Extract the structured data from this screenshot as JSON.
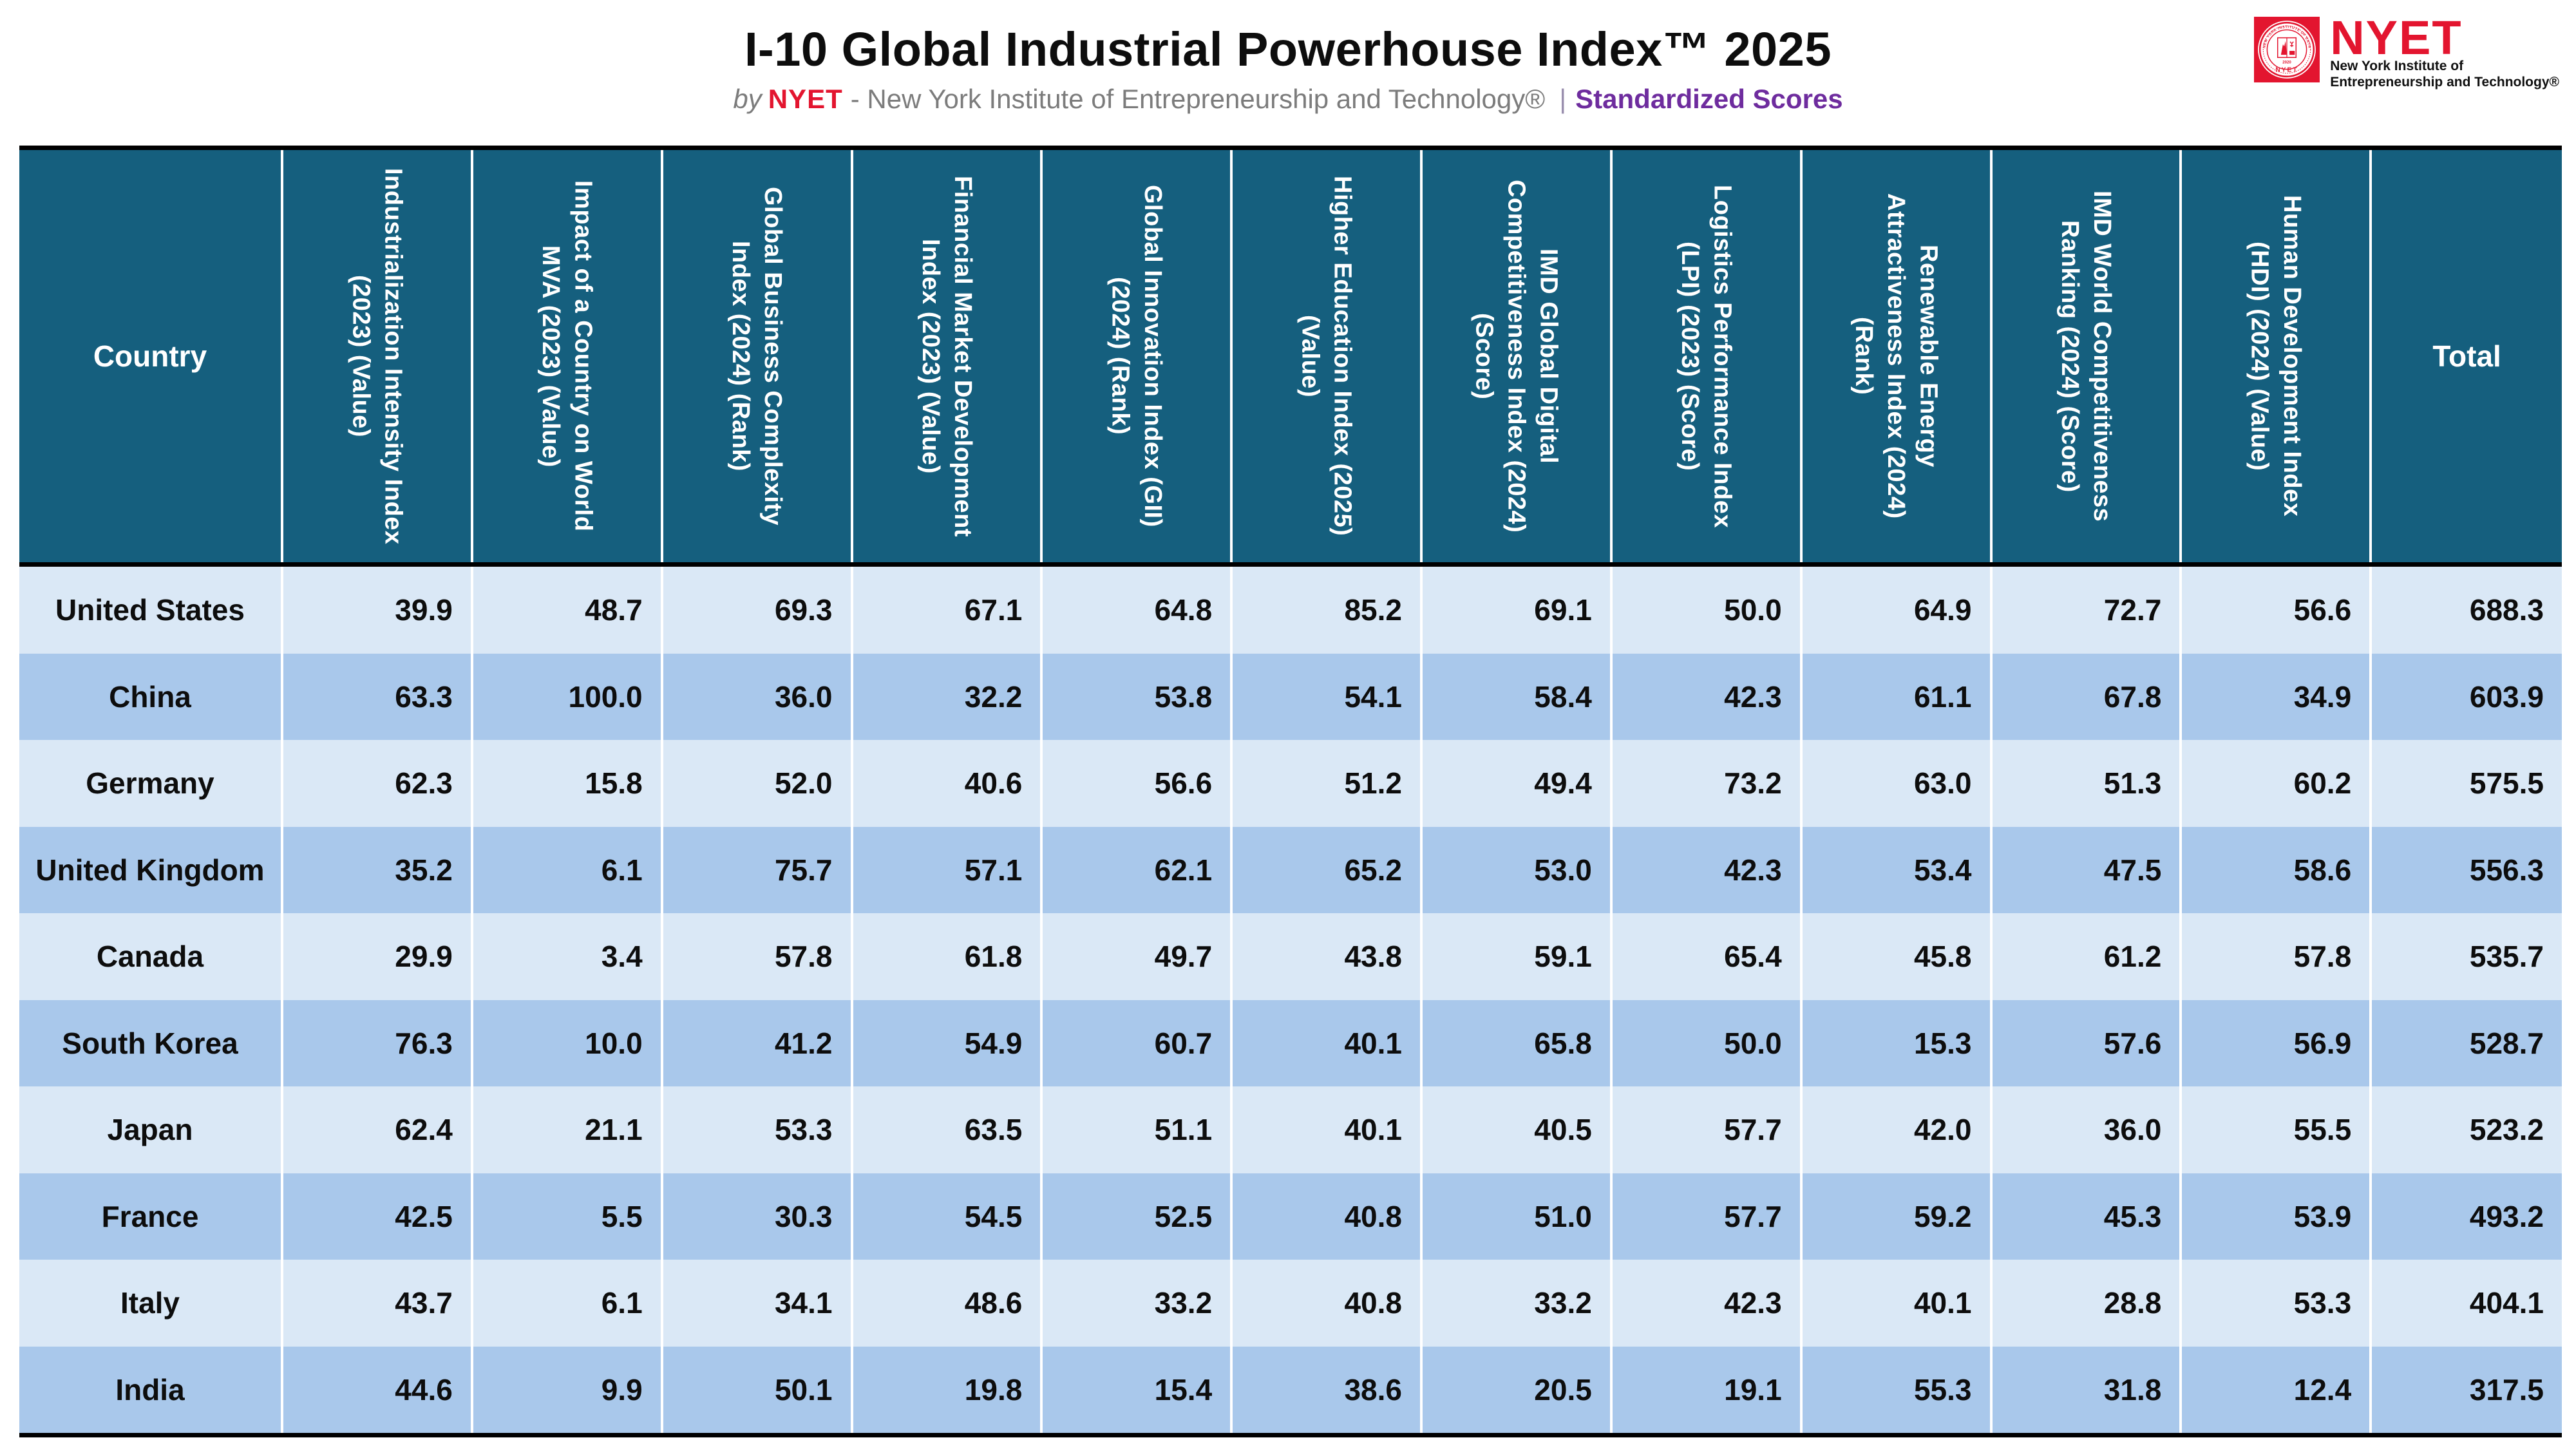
{
  "header": {
    "title": "I-10 Global Industrial Powerhouse Index™ 2025",
    "subtitle": {
      "by": "by",
      "brand": "NYET",
      "rest": "- New York Institute of Entrepreneurship and Technology®",
      "divider": "|",
      "highlight": "Standardized Scores"
    },
    "logo": {
      "brand": "NYET",
      "line1": "New York Institute of",
      "line2": "Entrepreneurship and Technology®",
      "seal_arc": "NEW YORK INSTITUTE OF ENTREPRENEURSHIP AND TECHNOLOGY",
      "seal_label": "NYET",
      "seal_year": "2020"
    }
  },
  "colors": {
    "header_bg": "#155f7e",
    "row_light": "#dae8f6",
    "row_dark": "#a9c8eb",
    "brand_red": "#e3152f",
    "accent_purple": "#6e2c9e",
    "subtitle_gray": "#7c7c7c",
    "border_black": "#000000",
    "grid_white": "#ffffff"
  },
  "chart_data": {
    "type": "table",
    "title": "I-10 Global Industrial Powerhouse Index™ 2025",
    "columns": [
      {
        "key": "country",
        "label": "Country",
        "rotated": false
      },
      {
        "key": "industrialization-intensity",
        "label": "Industrialization Intensity Index (2023) (Value)",
        "rotated": true
      },
      {
        "key": "world-mva-impact",
        "label": "Impact of a Country on World MVA (2023) (Value)",
        "rotated": true
      },
      {
        "key": "business-complexity",
        "label": "Global Business Complexity Index (2024) (Rank)",
        "rotated": true
      },
      {
        "key": "financial-market-development",
        "label": "Financial Market Development Index (2023) (Value)",
        "rotated": true
      },
      {
        "key": "global-innovation",
        "label": "Global Innovation Index (GII) (2024) (Rank)",
        "rotated": true
      },
      {
        "key": "higher-education",
        "label": "Higher Education Index (2025) (Value)",
        "rotated": true
      },
      {
        "key": "imd-digital-competitiveness",
        "label": "IMD Global Digital Competitiveness Index (2024) (Score)",
        "rotated": true
      },
      {
        "key": "logistics-performance",
        "label": "Logistics Performance Index (LPI) (2023) (Score)",
        "rotated": true
      },
      {
        "key": "renewable-energy",
        "label": "Renewable Energy Attractiveness Index (2024) (Rank)",
        "rotated": true
      },
      {
        "key": "imd-world-competitiveness",
        "label": "IMD World Competitiveness Ranking (2024) (Score)",
        "rotated": true
      },
      {
        "key": "hdi",
        "label": "Human Development Index (HDI) (2024) (Value)",
        "rotated": true
      },
      {
        "key": "total",
        "label": "Total",
        "rotated": false
      }
    ],
    "rows": [
      {
        "country": "United States",
        "values": [
          "39.9",
          "48.7",
          "69.3",
          "67.1",
          "64.8",
          "85.2",
          "69.1",
          "50.0",
          "64.9",
          "72.7",
          "56.6",
          "688.3"
        ]
      },
      {
        "country": "China",
        "values": [
          "63.3",
          "100.0",
          "36.0",
          "32.2",
          "53.8",
          "54.1",
          "58.4",
          "42.3",
          "61.1",
          "67.8",
          "34.9",
          "603.9"
        ]
      },
      {
        "country": "Germany",
        "values": [
          "62.3",
          "15.8",
          "52.0",
          "40.6",
          "56.6",
          "51.2",
          "49.4",
          "73.2",
          "63.0",
          "51.3",
          "60.2",
          "575.5"
        ]
      },
      {
        "country": "United Kingdom",
        "values": [
          "35.2",
          "6.1",
          "75.7",
          "57.1",
          "62.1",
          "65.2",
          "53.0",
          "42.3",
          "53.4",
          "47.5",
          "58.6",
          "556.3"
        ]
      },
      {
        "country": "Canada",
        "values": [
          "29.9",
          "3.4",
          "57.8",
          "61.8",
          "49.7",
          "43.8",
          "59.1",
          "65.4",
          "45.8",
          "61.2",
          "57.8",
          "535.7"
        ]
      },
      {
        "country": "South Korea",
        "values": [
          "76.3",
          "10.0",
          "41.2",
          "54.9",
          "60.7",
          "40.1",
          "65.8",
          "50.0",
          "15.3",
          "57.6",
          "56.9",
          "528.7"
        ]
      },
      {
        "country": "Japan",
        "values": [
          "62.4",
          "21.1",
          "53.3",
          "63.5",
          "51.1",
          "40.1",
          "40.5",
          "57.7",
          "42.0",
          "36.0",
          "55.5",
          "523.2"
        ]
      },
      {
        "country": "France",
        "values": [
          "42.5",
          "5.5",
          "30.3",
          "54.5",
          "52.5",
          "40.8",
          "51.0",
          "57.7",
          "59.2",
          "45.3",
          "53.9",
          "493.2"
        ]
      },
      {
        "country": "Italy",
        "values": [
          "43.7",
          "6.1",
          "34.1",
          "48.6",
          "33.2",
          "40.8",
          "33.2",
          "42.3",
          "40.1",
          "28.8",
          "53.3",
          "404.1"
        ]
      },
      {
        "country": "India",
        "values": [
          "44.6",
          "9.9",
          "50.1",
          "19.8",
          "15.4",
          "38.6",
          "20.5",
          "19.1",
          "55.3",
          "31.8",
          "12.4",
          "317.5"
        ]
      }
    ]
  }
}
